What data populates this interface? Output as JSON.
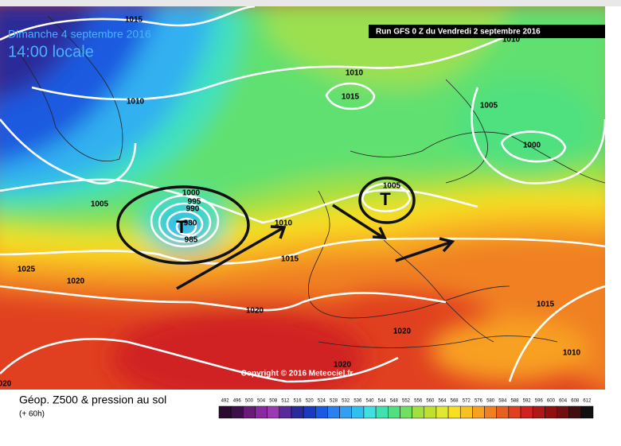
{
  "header": {
    "date": "Dimanche 4 septembre 2016",
    "time": "14:00 locale",
    "run": "Run GFS 0 Z du Vendredi 2 septembre 2016"
  },
  "isobar_labels": [
    "1015",
    "1010",
    "1010",
    "1015",
    "1010",
    "1005",
    "1000",
    "1005",
    "1000",
    "995",
    "990",
    "980",
    "985",
    "1005",
    "1010",
    "1015",
    "1025",
    "1020",
    "1020",
    "1020",
    "1015",
    "1010",
    "1020",
    "020"
  ],
  "markers": [
    "T",
    "T"
  ],
  "copyright": "Copyright © 2016 Meteociel.fr",
  "legend": {
    "title": "Géop. Z500 & pression au sol",
    "subtitle": "(+ 60h)",
    "scale": [
      492,
      496,
      500,
      504,
      508,
      512,
      516,
      520,
      524,
      528,
      532,
      536,
      540,
      544,
      548,
      552,
      556,
      560,
      564,
      568,
      572,
      576,
      580,
      584,
      588,
      592,
      596,
      600,
      604,
      608,
      612
    ],
    "colors": [
      "#2a0a2e",
      "#3d0f4a",
      "#6a1b7a",
      "#8a2aa0",
      "#9c3ab5",
      "#5a2a9a",
      "#2a2a9a",
      "#1a3ac0",
      "#1a5ae0",
      "#2a80f0",
      "#30a0f0",
      "#30c0f0",
      "#40e0e0",
      "#40e0b0",
      "#50e080",
      "#70e060",
      "#a0e040",
      "#c0e030",
      "#e0e830",
      "#f8e020",
      "#f8c020",
      "#f8a020",
      "#f08020",
      "#e86020",
      "#e04020",
      "#d02020",
      "#b01818",
      "#901010",
      "#701010",
      "#401010",
      "#101010"
    ]
  }
}
